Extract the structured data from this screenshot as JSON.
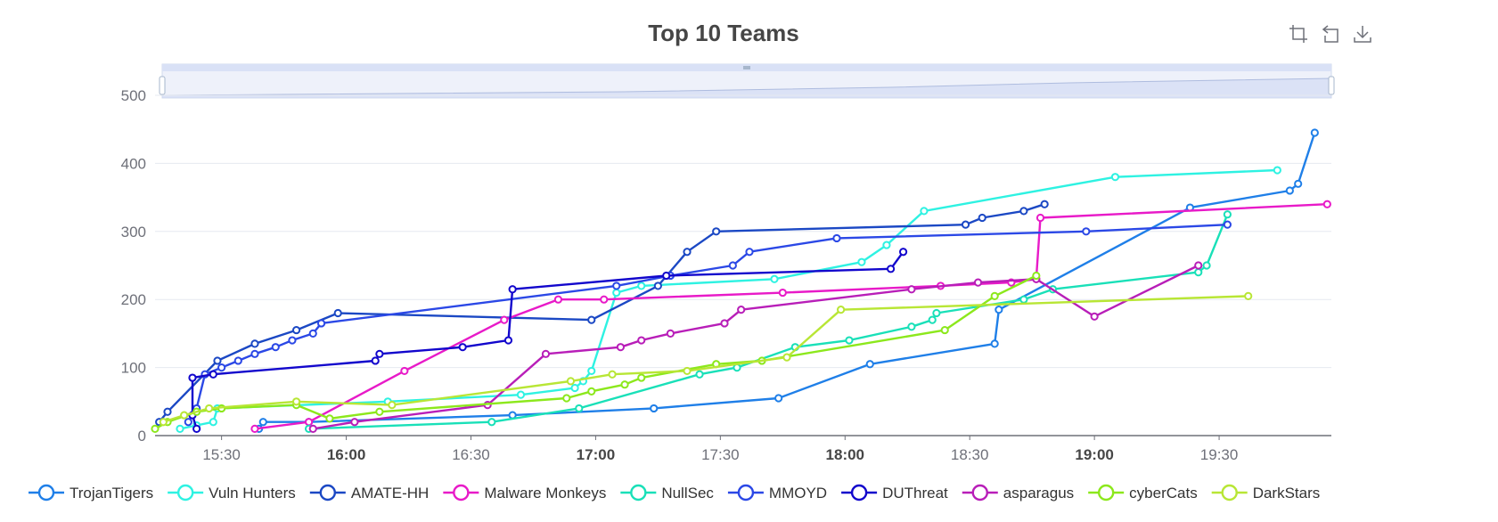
{
  "chart_data": {
    "type": "line",
    "title": "Top 10 Teams",
    "xlabel": "",
    "ylabel": "",
    "ylim": [
      0,
      500
    ],
    "yticks": [
      0,
      100,
      200,
      300,
      400,
      500
    ],
    "xrange": [
      "15:14",
      "19:57"
    ],
    "xticks": [
      "15:30",
      "16:00",
      "16:30",
      "17:00",
      "17:30",
      "18:00",
      "18:30",
      "19:00",
      "19:30"
    ],
    "xticks_bold": [
      "16:00",
      "17:00",
      "18:00",
      "19:00"
    ],
    "grid": "horizontal",
    "legend_position": "bottom",
    "datazoom": "top slider, full range",
    "series": [
      {
        "name": "TrojanTigers",
        "color": "#1f7fe8",
        "points": [
          [
            "15:39",
            10
          ],
          [
            "15:40",
            20
          ],
          [
            "15:51",
            20
          ],
          [
            "16:40",
            30
          ],
          [
            "17:14",
            40
          ],
          [
            "17:44",
            55
          ],
          [
            "18:06",
            105
          ],
          [
            "18:36",
            135
          ],
          [
            "18:37",
            185
          ],
          [
            "19:23",
            335
          ],
          [
            "19:47",
            360
          ],
          [
            "19:49",
            370
          ],
          [
            "19:53",
            445
          ]
        ]
      },
      {
        "name": "Vuln Hunters",
        "color": "#2ef2e2",
        "points": [
          [
            "15:20",
            10
          ],
          [
            "15:24",
            15
          ],
          [
            "15:28",
            20
          ],
          [
            "15:29",
            40
          ],
          [
            "16:10",
            50
          ],
          [
            "16:42",
            60
          ],
          [
            "16:55",
            70
          ],
          [
            "16:57",
            80
          ],
          [
            "16:59",
            95
          ],
          [
            "17:05",
            210
          ],
          [
            "17:11",
            220
          ],
          [
            "17:43",
            230
          ],
          [
            "18:04",
            255
          ],
          [
            "18:10",
            280
          ],
          [
            "18:19",
            330
          ],
          [
            "19:05",
            380
          ],
          [
            "19:44",
            390
          ]
        ]
      },
      {
        "name": "AMATE-HH",
        "color": "#1b48c4",
        "points": [
          [
            "15:15",
            20
          ],
          [
            "15:17",
            35
          ],
          [
            "15:29",
            110
          ],
          [
            "15:38",
            135
          ],
          [
            "15:48",
            155
          ],
          [
            "15:58",
            180
          ],
          [
            "16:59",
            170
          ],
          [
            "17:15",
            220
          ],
          [
            "17:22",
            270
          ],
          [
            "17:29",
            300
          ],
          [
            "18:29",
            310
          ],
          [
            "18:33",
            320
          ],
          [
            "18:43",
            330
          ],
          [
            "18:48",
            340
          ]
        ]
      },
      {
        "name": "Malware Monkeys",
        "color": "#e81ac8",
        "points": [
          [
            "15:38",
            10
          ],
          [
            "15:51",
            20
          ],
          [
            "16:14",
            95
          ],
          [
            "16:38",
            170
          ],
          [
            "16:51",
            200
          ],
          [
            "17:02",
            200
          ],
          [
            "17:45",
            210
          ],
          [
            "18:23",
            220
          ],
          [
            "18:40",
            225
          ],
          [
            "18:46",
            230
          ],
          [
            "18:47",
            320
          ],
          [
            "19:56",
            340
          ]
        ]
      },
      {
        "name": "NullSec",
        "color": "#19e0b8",
        "points": [
          [
            "15:51",
            10
          ],
          [
            "16:35",
            20
          ],
          [
            "16:56",
            40
          ],
          [
            "17:25",
            90
          ],
          [
            "17:34",
            100
          ],
          [
            "17:48",
            130
          ],
          [
            "18:01",
            140
          ],
          [
            "18:16",
            160
          ],
          [
            "18:21",
            170
          ],
          [
            "18:22",
            180
          ],
          [
            "18:43",
            200
          ],
          [
            "18:50",
            215
          ],
          [
            "19:25",
            240
          ],
          [
            "19:27",
            250
          ],
          [
            "19:32",
            325
          ]
        ]
      },
      {
        "name": "MMOYD",
        "color": "#2b48e6",
        "points": [
          [
            "15:22",
            20
          ],
          [
            "15:24",
            40
          ],
          [
            "15:26",
            90
          ],
          [
            "15:30",
            100
          ],
          [
            "15:34",
            110
          ],
          [
            "15:38",
            120
          ],
          [
            "15:43",
            130
          ],
          [
            "15:47",
            140
          ],
          [
            "15:52",
            150
          ],
          [
            "15:54",
            165
          ],
          [
            "17:05",
            220
          ],
          [
            "17:18",
            235
          ],
          [
            "17:33",
            250
          ],
          [
            "17:37",
            270
          ],
          [
            "17:58",
            290
          ],
          [
            "18:58",
            300
          ],
          [
            "19:32",
            310
          ]
        ]
      },
      {
        "name": "DUThreat",
        "color": "#1206cc",
        "points": [
          [
            "15:24",
            10
          ],
          [
            "15:23",
            30
          ],
          [
            "15:23",
            85
          ],
          [
            "15:28",
            90
          ],
          [
            "16:07",
            110
          ],
          [
            "16:08",
            120
          ],
          [
            "16:28",
            130
          ],
          [
            "16:39",
            140
          ],
          [
            "16:40",
            215
          ],
          [
            "17:17",
            235
          ],
          [
            "18:11",
            245
          ],
          [
            "18:14",
            270
          ]
        ]
      },
      {
        "name": "asparagus",
        "color": "#b81eb8",
        "points": [
          [
            "15:52",
            10
          ],
          [
            "16:02",
            20
          ],
          [
            "16:34",
            45
          ],
          [
            "16:48",
            120
          ],
          [
            "17:06",
            130
          ],
          [
            "17:11",
            140
          ],
          [
            "17:18",
            150
          ],
          [
            "17:31",
            165
          ],
          [
            "17:35",
            185
          ],
          [
            "18:16",
            215
          ],
          [
            "18:32",
            225
          ],
          [
            "18:46",
            230
          ],
          [
            "19:00",
            175
          ],
          [
            "19:25",
            250
          ]
        ]
      },
      {
        "name": "cyberCats",
        "color": "#8ce81c",
        "points": [
          [
            "15:14",
            10
          ],
          [
            "15:17",
            20
          ],
          [
            "15:24",
            35
          ],
          [
            "15:30",
            40
          ],
          [
            "15:48",
            45
          ],
          [
            "15:56",
            25
          ],
          [
            "16:08",
            35
          ],
          [
            "16:53",
            55
          ],
          [
            "16:59",
            65
          ],
          [
            "17:07",
            75
          ],
          [
            "17:11",
            85
          ],
          [
            "17:29",
            105
          ],
          [
            "17:40",
            110
          ],
          [
            "18:24",
            155
          ],
          [
            "18:36",
            205
          ],
          [
            "18:46",
            235
          ]
        ]
      },
      {
        "name": "DarkStars",
        "color": "#b8e635",
        "points": [
          [
            "15:16",
            20
          ],
          [
            "15:21",
            30
          ],
          [
            "15:27",
            40
          ],
          [
            "15:48",
            50
          ],
          [
            "16:11",
            45
          ],
          [
            "16:54",
            80
          ],
          [
            "17:04",
            90
          ],
          [
            "17:22",
            95
          ],
          [
            "17:46",
            115
          ],
          [
            "17:59",
            185
          ],
          [
            "19:37",
            205
          ]
        ]
      }
    ]
  },
  "toolbox": {
    "zoom_icon": "data-zoom-icon",
    "restore_icon": "restore-icon",
    "save_icon": "save-as-image-icon"
  }
}
